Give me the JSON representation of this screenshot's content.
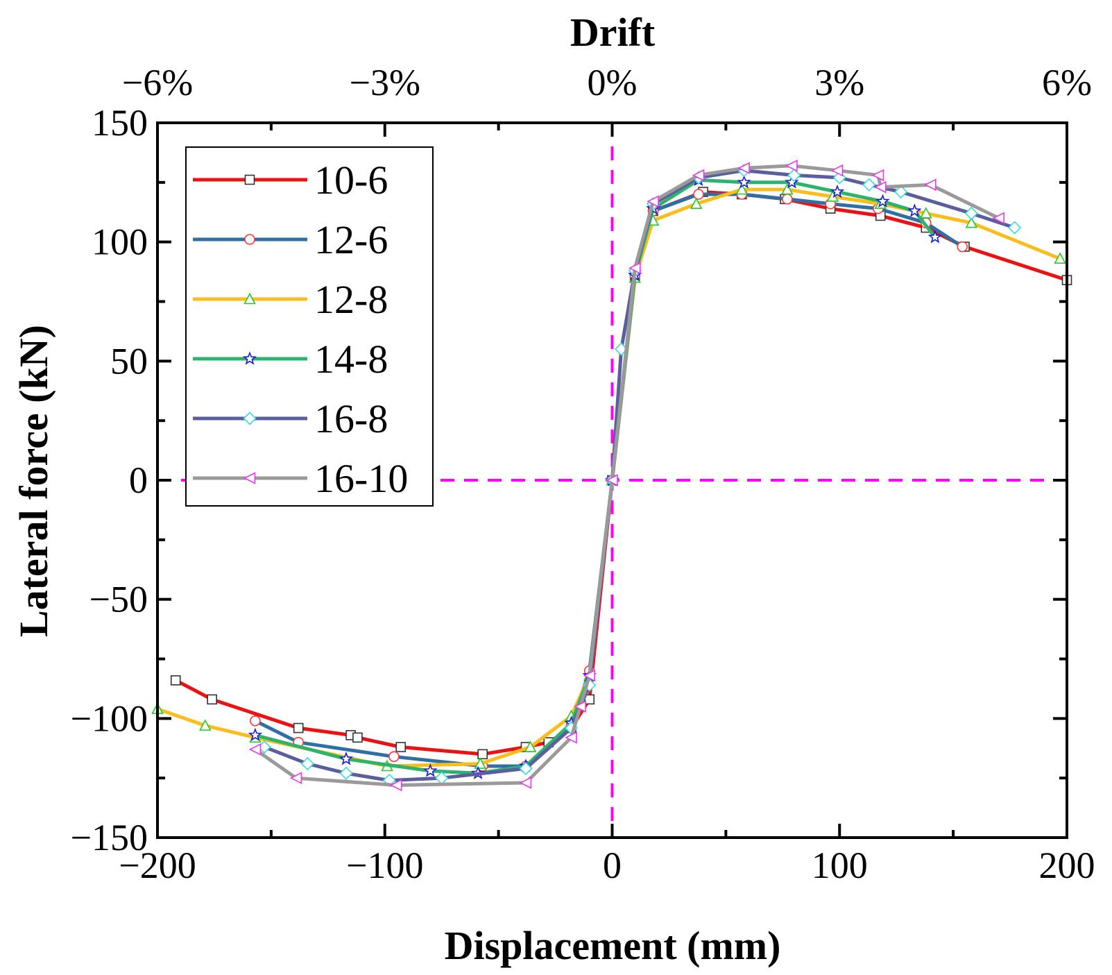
{
  "chart_data": {
    "type": "line",
    "xlabel": "Displacement (mm)",
    "ylabel": "Lateral force (kN)",
    "top_axis_title": "Drift",
    "xlim": [
      -200,
      200
    ],
    "ylim": [
      -150,
      150
    ],
    "x_ticks": [
      -200,
      -100,
      0,
      100,
      200
    ],
    "x_tick_labels": [
      "−200",
      "−100",
      "0",
      "100",
      "200"
    ],
    "y_ticks": [
      -150,
      -100,
      -50,
      0,
      50,
      100,
      150
    ],
    "y_tick_labels": [
      "−150",
      "−100",
      "−50",
      "0",
      "50",
      "100",
      "150"
    ],
    "top_ticks": [
      -200,
      -100,
      0,
      100,
      200
    ],
    "top_tick_labels": [
      "−6%",
      "−3%",
      "0%",
      "3%",
      "6%"
    ],
    "reference_lines": [
      {
        "axis": "x",
        "value": 0,
        "color": "#ff00ff",
        "style": "dashed"
      },
      {
        "axis": "y",
        "value": 0,
        "color": "#ff00ff",
        "style": "dashed"
      }
    ],
    "legend_position": "top-left",
    "series": [
      {
        "name": "10-6",
        "color": "#ee1111",
        "marker": "square",
        "marker_color": "#333333",
        "x": [
          -192,
          -176,
          -138,
          -115,
          -112,
          -93,
          -57,
          -38,
          -28,
          -18,
          -10,
          0,
          10,
          18,
          40,
          57,
          76,
          96,
          118,
          138,
          155,
          200
        ],
        "y": [
          -84,
          -92,
          -104,
          -107,
          -108,
          -112,
          -115,
          -112,
          -110,
          -104,
          -92,
          0,
          85,
          113,
          121,
          120,
          118,
          114,
          111,
          106,
          98,
          84
        ]
      },
      {
        "name": "12-6",
        "color": "#2e6fa6",
        "marker": "circle",
        "marker_color": "#ff3333",
        "x": [
          -157,
          -138,
          -96,
          -57,
          -38,
          -18,
          -10,
          0,
          10,
          18,
          38,
          57,
          77,
          96,
          117,
          138,
          154
        ],
        "y": [
          -101,
          -110,
          -116,
          -120,
          -120,
          -103,
          -80,
          0,
          86,
          113,
          120,
          120,
          118,
          116,
          114,
          108,
          98
        ]
      },
      {
        "name": "12-8",
        "color": "#fbbd1a",
        "marker": "triangle",
        "marker_color": "#22cc22",
        "x": [
          -200,
          -179,
          -157,
          -99,
          -58,
          -36,
          -18,
          -10,
          0,
          10,
          18,
          37,
          57,
          77,
          97,
          118,
          138,
          158,
          197
        ],
        "y": [
          -96,
          -103,
          -108,
          -120,
          -119,
          -112,
          -99,
          -82,
          0,
          85,
          109,
          116,
          122,
          122,
          119,
          116,
          112,
          108,
          93
        ]
      },
      {
        "name": "14-8",
        "color": "#2db36b",
        "marker": "star",
        "marker_color": "#1a1ad6",
        "x": [
          -157,
          -117,
          -80,
          -59,
          -38,
          -18,
          -10,
          0,
          10,
          18,
          38,
          58,
          79,
          99,
          119,
          133,
          142
        ],
        "y": [
          -107,
          -117,
          -122,
          -123,
          -120,
          -102,
          -82,
          0,
          86,
          114,
          126,
          125,
          125,
          121,
          117,
          113,
          102
        ]
      },
      {
        "name": "16-8",
        "color": "#5b5e9e",
        "marker": "diamond",
        "marker_color": "#33dddd",
        "x": [
          -153,
          -134,
          -117,
          -98,
          -75,
          -38,
          -18,
          -10,
          0,
          4,
          10,
          18,
          38,
          58,
          80,
          100,
          113,
          127,
          158,
          177
        ],
        "y": [
          -112,
          -119,
          -123,
          -126,
          -125,
          -121,
          -104,
          -86,
          0,
          55,
          88,
          116,
          127,
          130,
          128,
          127,
          124,
          121,
          112,
          106
        ]
      },
      {
        "name": "16-10",
        "color": "#9a9a9a",
        "marker": "left-triangle",
        "marker_color": "#ee33ee",
        "x": [
          -157,
          -139,
          -95,
          -38,
          -18,
          -14,
          -10,
          0,
          10,
          18,
          38,
          58,
          79,
          99,
          117,
          118,
          140,
          170
        ],
        "y": [
          -113,
          -125,
          -128,
          -127,
          -108,
          -95,
          -82,
          0,
          89,
          117,
          128,
          131,
          132,
          130,
          128,
          123,
          124,
          110
        ]
      }
    ]
  }
}
